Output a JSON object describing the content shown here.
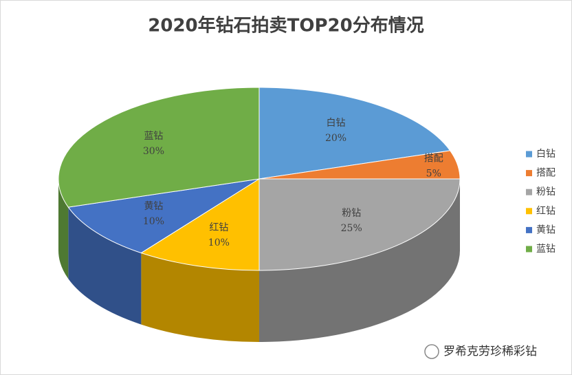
{
  "chart_data": {
    "type": "pie3d",
    "title": "2020年钻石拍卖TOP20分布情况",
    "categories": [
      "白钻",
      "搭配",
      "粉钻",
      "红钻",
      "黄钻",
      "蓝钻"
    ],
    "values": [
      20,
      5,
      25,
      10,
      10,
      30
    ],
    "value_labels": [
      "20%",
      "5%",
      "25%",
      "10%",
      "10%",
      "30%"
    ],
    "colors": [
      "#5b9bd5",
      "#ed7d31",
      "#a5a5a5",
      "#ffc000",
      "#4472c4",
      "#70ad47"
    ],
    "legend": "right",
    "watermark": "罗希克劳珍稀彩钻"
  }
}
